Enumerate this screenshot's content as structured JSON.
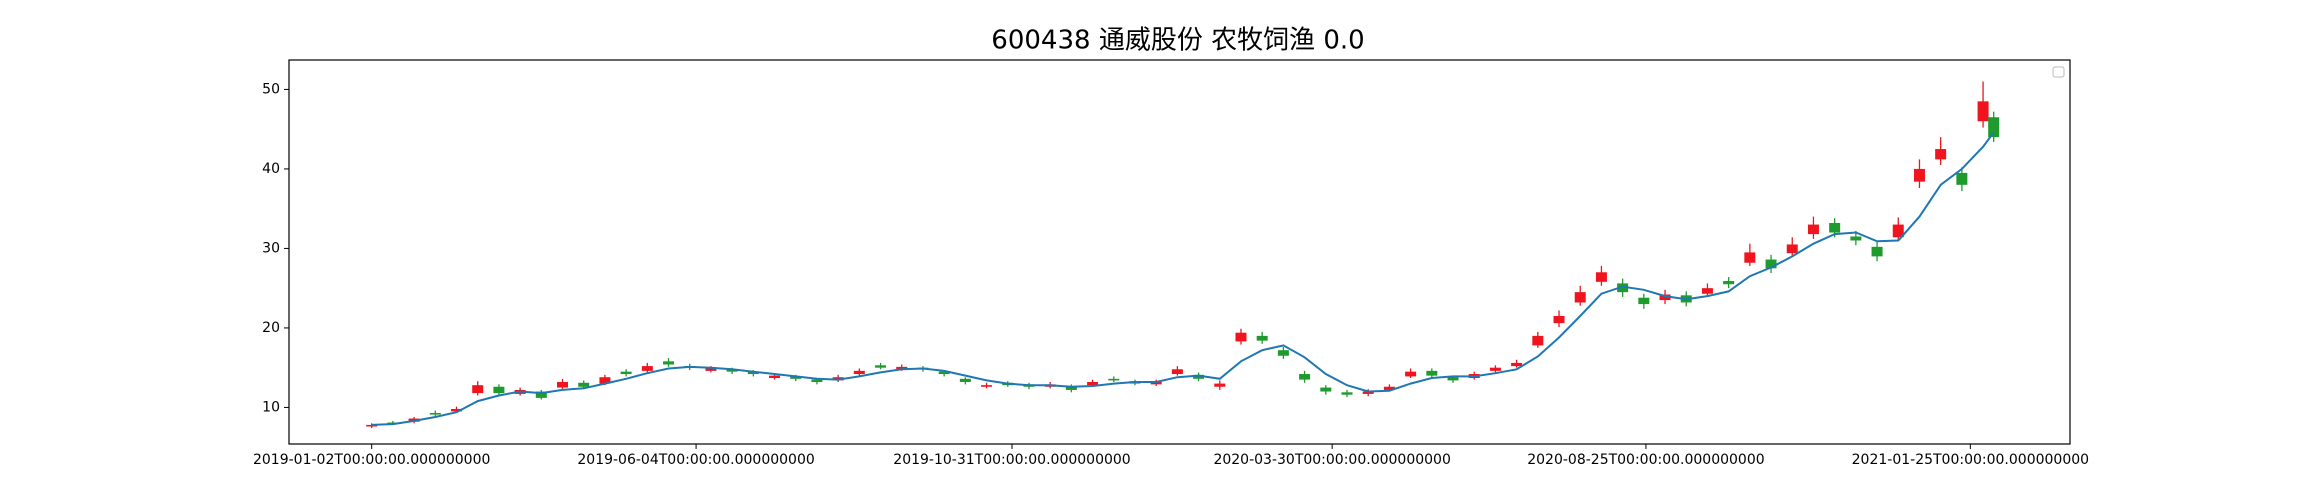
{
  "chart_data": {
    "type": "candlestick",
    "title": "600438 通威股份 农牧饲渔 0.0",
    "x": [
      "2019-01-02",
      "2019-01-12",
      "2019-01-22",
      "2019-02-01",
      "2019-02-11",
      "2019-02-21",
      "2019-03-03",
      "2019-03-13",
      "2019-03-23",
      "2019-04-02",
      "2019-04-12",
      "2019-04-22",
      "2019-05-02",
      "2019-05-12",
      "2019-05-22",
      "2019-06-01",
      "2019-06-11",
      "2019-06-21",
      "2019-07-01",
      "2019-07-11",
      "2019-07-21",
      "2019-07-31",
      "2019-08-10",
      "2019-08-20",
      "2019-08-30",
      "2019-09-09",
      "2019-09-19",
      "2019-09-29",
      "2019-10-09",
      "2019-10-19",
      "2019-10-29",
      "2019-11-08",
      "2019-11-18",
      "2019-11-28",
      "2019-12-08",
      "2019-12-18",
      "2019-12-28",
      "2020-01-07",
      "2020-01-17",
      "2020-01-27",
      "2020-02-06",
      "2020-02-16",
      "2020-02-26",
      "2020-03-07",
      "2020-03-17",
      "2020-03-27",
      "2020-04-06",
      "2020-04-16",
      "2020-04-26",
      "2020-05-06",
      "2020-05-16",
      "2020-05-26",
      "2020-06-05",
      "2020-06-15",
      "2020-06-25",
      "2020-07-05",
      "2020-07-15",
      "2020-07-25",
      "2020-08-04",
      "2020-08-14",
      "2020-08-24",
      "2020-09-03",
      "2020-09-13",
      "2020-09-23",
      "2020-10-03",
      "2020-10-13",
      "2020-10-23",
      "2020-11-02",
      "2020-11-12",
      "2020-11-22",
      "2020-12-02",
      "2020-12-12",
      "2020-12-22",
      "2021-01-01",
      "2021-01-11",
      "2021-01-21",
      "2021-01-31",
      "2021-02-05"
    ],
    "open": [
      7.6,
      8.1,
      8.2,
      9.3,
      9.5,
      11.8,
      12.6,
      11.7,
      12.0,
      12.5,
      13.1,
      13.0,
      14.5,
      14.6,
      15.8,
      15.2,
      14.6,
      14.8,
      14.5,
      13.7,
      13.9,
      13.5,
      13.4,
      14.2,
      15.3,
      14.8,
      15.0,
      14.5,
      13.6,
      12.6,
      13.1,
      12.9,
      12.6,
      12.7,
      12.8,
      13.6,
      13.3,
      12.9,
      14.2,
      14.1,
      12.6,
      18.3,
      19.0,
      17.2,
      14.2,
      12.5,
      11.9,
      11.7,
      12.2,
      13.9,
      14.6,
      13.8,
      13.7,
      14.6,
      15.2,
      17.8,
      20.6,
      23.2,
      25.8,
      25.6,
      23.8,
      23.5,
      24.1,
      24.3,
      25.9,
      28.2,
      28.6,
      29.4,
      31.8,
      33.2,
      31.5,
      30.2,
      31.4,
      38.4,
      41.2,
      39.5,
      46.0,
      46.5
    ],
    "high": [
      8.0,
      8.3,
      8.8,
      9.6,
      10.1,
      13.3,
      12.9,
      12.5,
      12.2,
      13.6,
      13.4,
      14.1,
      14.8,
      15.6,
      16.2,
      15.5,
      15.2,
      15.0,
      14.7,
      14.3,
      14.1,
      13.7,
      14.1,
      14.9,
      15.6,
      15.4,
      15.2,
      14.7,
      13.8,
      13.1,
      13.3,
      13.1,
      13.2,
      12.9,
      13.5,
      13.9,
      13.5,
      13.5,
      15.2,
      14.4,
      13.4,
      19.9,
      19.5,
      17.6,
      14.6,
      12.8,
      12.2,
      12.3,
      12.9,
      14.9,
      14.9,
      14.0,
      14.5,
      15.3,
      16.0,
      19.5,
      22.2,
      25.3,
      27.8,
      26.2,
      24.3,
      24.8,
      24.6,
      25.6,
      26.4,
      30.6,
      29.2,
      31.4,
      34.0,
      33.8,
      32.2,
      30.8,
      33.9,
      41.2,
      44.0,
      40.2,
      51.0,
      47.2
    ],
    "low": [
      7.4,
      7.8,
      8.0,
      8.9,
      9.3,
      11.5,
      11.5,
      11.5,
      11.0,
      12.3,
      12.3,
      12.8,
      13.9,
      14.4,
      15.1,
      14.7,
      14.4,
      14.2,
      13.9,
      13.5,
      13.3,
      12.9,
      13.2,
      14.0,
      14.8,
      14.6,
      14.5,
      13.9,
      12.9,
      12.4,
      12.6,
      12.3,
      12.4,
      11.9,
      12.6,
      13.2,
      12.8,
      12.7,
      14.0,
      13.3,
      12.2,
      17.9,
      18.0,
      16.1,
      13.1,
      11.6,
      11.3,
      11.4,
      12.0,
      13.7,
      13.7,
      13.1,
      13.5,
      14.4,
      15.0,
      17.5,
      20.1,
      22.8,
      25.3,
      23.9,
      22.4,
      23.0,
      22.7,
      23.9,
      25.0,
      27.8,
      26.9,
      28.9,
      31.2,
      31.4,
      30.4,
      28.4,
      30.9,
      37.6,
      40.5,
      37.2,
      45.2,
      43.4
    ],
    "close": [
      7.8,
      8.0,
      8.6,
      9.1,
      9.8,
      12.8,
      11.8,
      12.2,
      11.2,
      13.2,
      12.6,
      13.8,
      14.2,
      15.2,
      15.4,
      15.0,
      14.9,
      14.5,
      14.2,
      14.0,
      13.6,
      13.2,
      13.8,
      14.6,
      15.0,
      15.1,
      14.8,
      14.2,
      13.2,
      12.8,
      12.8,
      12.6,
      12.9,
      12.2,
      13.2,
      13.4,
      13.0,
      13.2,
      14.8,
      13.6,
      13.0,
      19.4,
      18.4,
      16.5,
      13.5,
      12.0,
      11.6,
      12.0,
      12.6,
      14.5,
      14.0,
      13.4,
      14.2,
      15.0,
      15.6,
      19.0,
      21.5,
      24.5,
      27.0,
      24.5,
      23.0,
      24.2,
      23.2,
      25.0,
      25.5,
      29.5,
      27.5,
      30.5,
      33.0,
      32.0,
      31.0,
      29.0,
      33.0,
      40.0,
      42.5,
      38.0,
      48.5,
      44.0
    ],
    "up_color": "#f0141e",
    "down_color": "#1f9b2d",
    "line": {
      "color": "#1f77b4",
      "values": [
        7.8,
        7.9,
        8.3,
        8.8,
        9.4,
        10.8,
        11.5,
        12.0,
        11.8,
        12.2,
        12.4,
        13.0,
        13.6,
        14.3,
        14.9,
        15.1,
        15.0,
        14.8,
        14.5,
        14.2,
        13.9,
        13.6,
        13.5,
        13.9,
        14.4,
        14.8,
        14.9,
        14.6,
        14.0,
        13.4,
        13.0,
        12.8,
        12.8,
        12.6,
        12.7,
        13.0,
        13.2,
        13.2,
        13.8,
        14.0,
        13.6,
        15.8,
        17.2,
        17.8,
        16.3,
        14.2,
        12.8,
        12.0,
        12.1,
        13.0,
        13.7,
        13.9,
        13.9,
        14.3,
        14.8,
        16.4,
        18.8,
        21.5,
        24.3,
        25.2,
        24.8,
        24.0,
        23.6,
        24.0,
        24.6,
        26.5,
        27.6,
        29.0,
        30.6,
        31.8,
        32.0,
        30.9,
        31.0,
        34.0,
        38.0,
        40.0,
        42.8,
        44.6
      ]
    },
    "xlim": [
      "2018-11-24",
      "2021-03-13"
    ],
    "xticks": [
      {
        "value": "2019-01-02",
        "label": "2019-01-02T00:00:00.000000000"
      },
      {
        "value": "2019-06-04",
        "label": "2019-06-04T00:00:00.000000000"
      },
      {
        "value": "2019-10-31",
        "label": "2019-10-31T00:00:00.000000000"
      },
      {
        "value": "2020-03-30",
        "label": "2020-03-30T00:00:00.000000000"
      },
      {
        "value": "2020-08-25",
        "label": "2020-08-25T00:00:00.000000000"
      },
      {
        "value": "2021-01-25",
        "label": "2021-01-25T00:00:00.000000000"
      }
    ],
    "ylim": [
      5.4,
      53.7
    ],
    "yticks": [
      10,
      20,
      30,
      40,
      50
    ]
  }
}
